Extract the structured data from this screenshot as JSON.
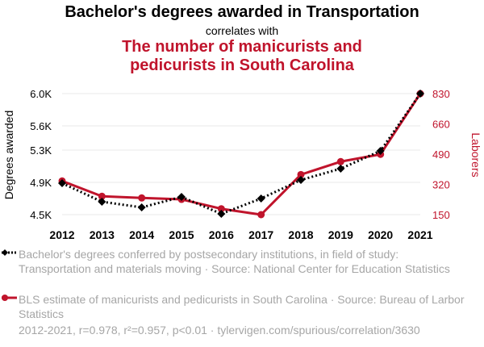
{
  "header": {
    "title": "Bachelor's degrees awarded in Transportation",
    "connector": "correlates with",
    "subtitle_line1": "The number of manicurists and",
    "subtitle_line2": "pedicurists in South Carolina"
  },
  "legend": {
    "series1": "Bachelor's degrees conferred by postsecondary institutions, in field of study: Transportation and materials moving · Source: National Center for Education Statistics",
    "series2": "BLS estimate of manicurists and pedicurists in South Carolina · Source: Bureau of Larbor Statistics"
  },
  "footer": "2012-2021, r=0.978, r²=0.957, p<0.01 · tylervigen.com/spurious/correlation/3630",
  "colors": {
    "series1": "#000000",
    "series2": "#c0142c",
    "grid": "#e8e8e8",
    "muted": "#a6a6a6"
  },
  "chart_data": {
    "type": "line",
    "x": [
      2012,
      2013,
      2014,
      2015,
      2016,
      2017,
      2018,
      2019,
      2020,
      2021
    ],
    "ylabel_left": "Degrees awarded",
    "ylabel_right": "Laborers",
    "y_left_ticks": [
      4.5,
      4.9,
      5.3,
      5.6,
      6.0
    ],
    "y_left_tick_labels": [
      "4.5K",
      "4.9K",
      "5.3K",
      "5.6K",
      "6.0K"
    ],
    "y_left_lim": [
      4.5,
      6.0
    ],
    "y_right_ticks": [
      150,
      320,
      490,
      660,
      830
    ],
    "y_right_lim": [
      150,
      830
    ],
    "grid": true,
    "series": [
      {
        "axis": "left",
        "style": "dotted",
        "marker": "diamond",
        "values": [
          4.89,
          4.66,
          4.59,
          4.72,
          4.51,
          4.7,
          4.93,
          5.07,
          5.29,
          6.0
        ]
      },
      {
        "axis": "right",
        "style": "solid",
        "marker": "circle",
        "values": [
          339,
          253,
          244,
          236,
          183,
          150,
          375,
          448,
          489,
          830
        ]
      }
    ]
  }
}
